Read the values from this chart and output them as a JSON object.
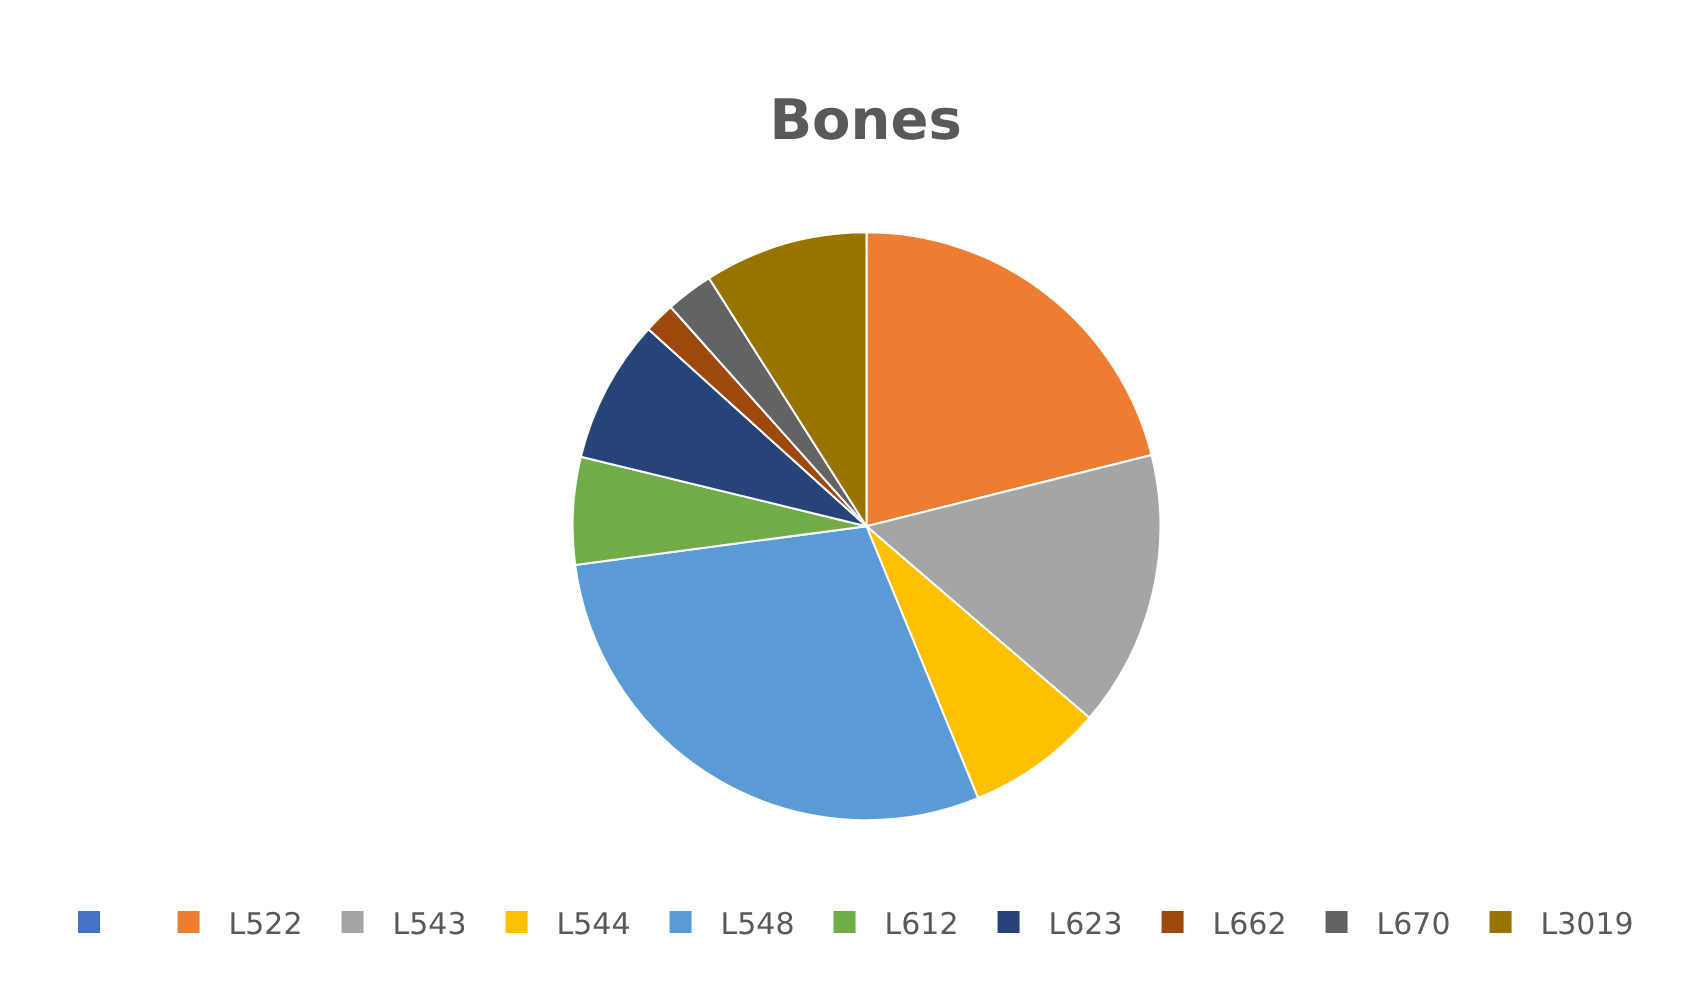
{
  "chart_data": {
    "type": "pie",
    "title": "Bones",
    "categories": [
      null,
      "L522",
      "L543",
      "L544",
      "L548",
      "L612",
      "L623",
      "L662",
      "L670",
      "L3019"
    ],
    "values": [
      0,
      21.1,
      15.2,
      7.5,
      29.1,
      5.9,
      7.9,
      1.7,
      2.6,
      9.0
    ],
    "colors": [
      "#4472c4",
      "#ed7d31",
      "#a5a5a5",
      "#ffc000",
      "#5b9bd5",
      "#70ad47",
      "#264478",
      "#9e480e",
      "#636363",
      "#997300"
    ],
    "legend": "bottom"
  }
}
